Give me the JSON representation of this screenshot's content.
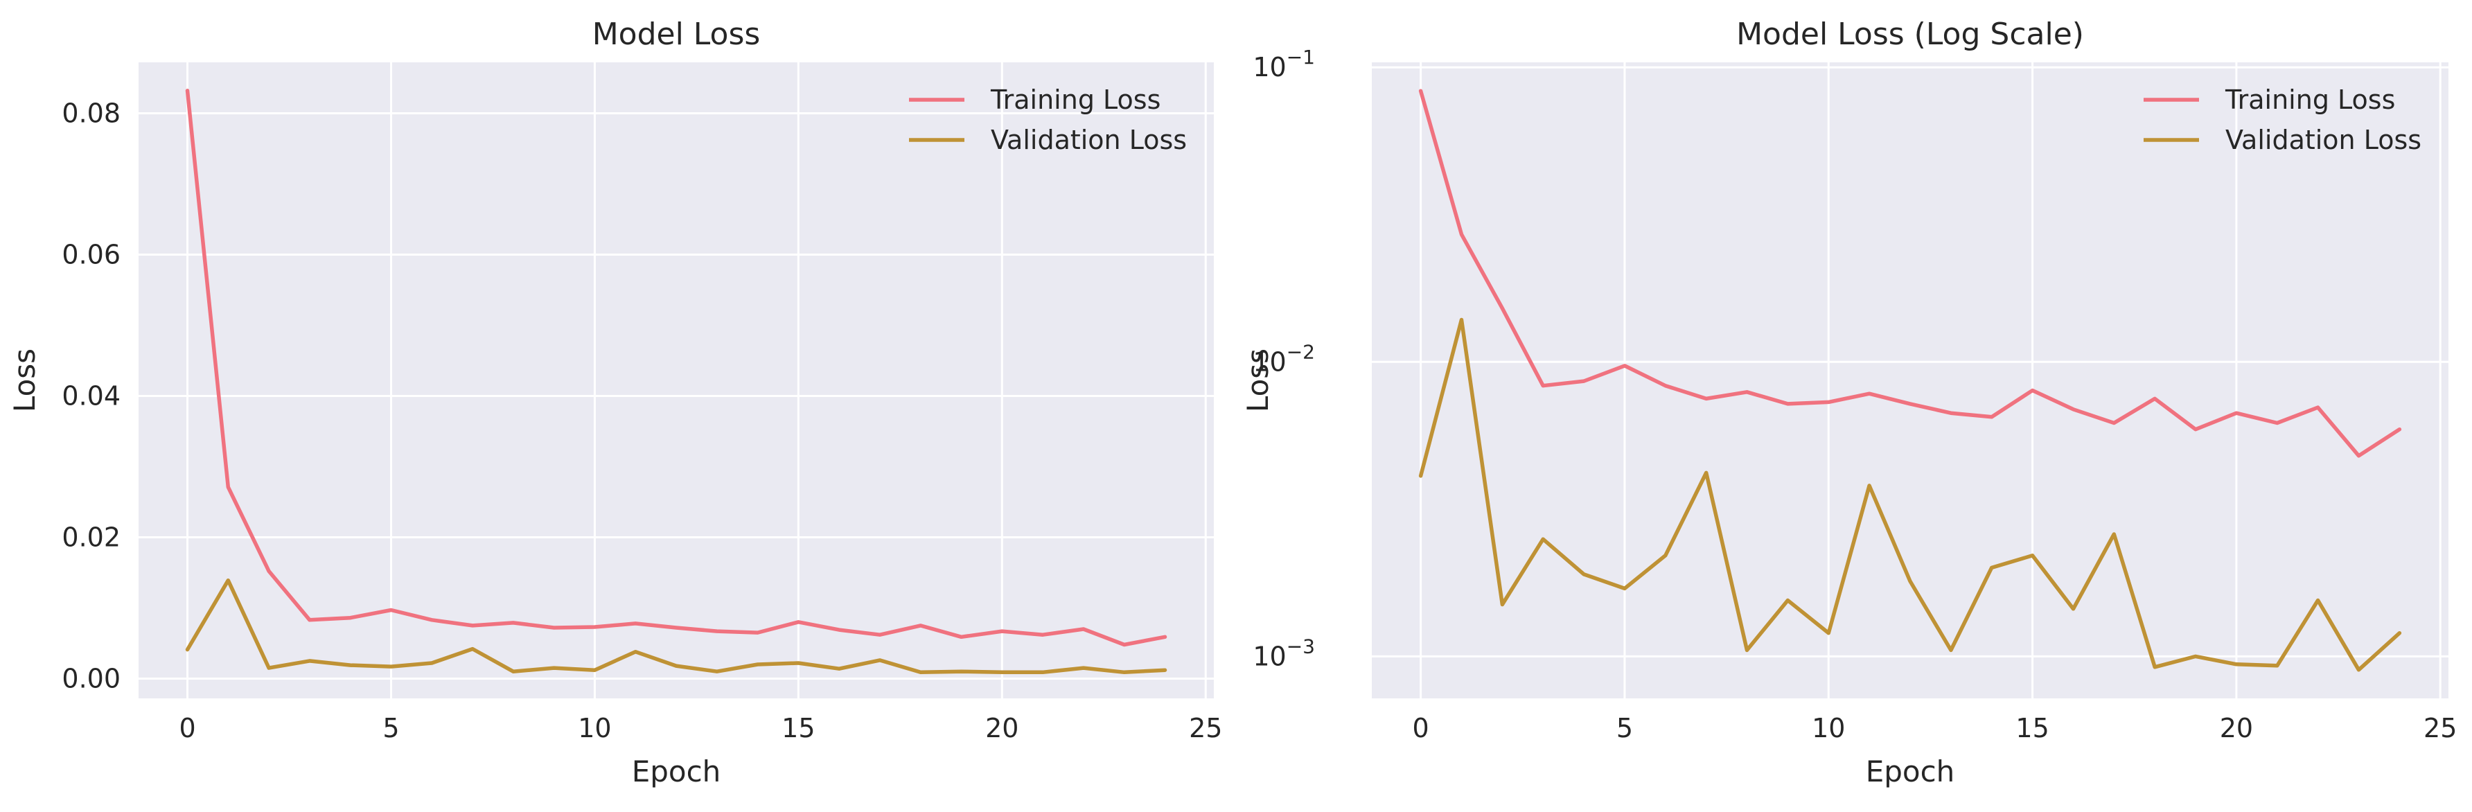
{
  "style": {
    "plot_background": "#EAEAF2",
    "grid_color": "#FFFFFF",
    "text_color": "#262626",
    "training_color": "#F0727F",
    "validation_color": "#BF9235"
  },
  "chart_data": [
    {
      "type": "line",
      "title": "Model Loss",
      "xlabel": "Epoch",
      "ylabel": "Loss",
      "yscale": "linear",
      "xlim": [
        -1.2,
        25.2
      ],
      "ylim": [
        -0.0028,
        0.0872
      ],
      "xticks": [
        0,
        5,
        10,
        15,
        20,
        25
      ],
      "yticks": [
        0.0,
        0.02,
        0.04,
        0.06,
        0.08
      ],
      "xtick_labels": [
        "0",
        "5",
        "10",
        "15",
        "20",
        "25"
      ],
      "ytick_labels": [
        "0.00",
        "0.02",
        "0.04",
        "0.06",
        "0.08"
      ],
      "grid": true,
      "legend_position": "top-right",
      "x": [
        0,
        1,
        2,
        3,
        4,
        5,
        6,
        7,
        8,
        9,
        10,
        11,
        12,
        13,
        14,
        15,
        16,
        17,
        18,
        19,
        20,
        21,
        22,
        23,
        24
      ],
      "series": [
        {
          "name": "Training Loss",
          "color": "#F0727F",
          "values": [
            0.0832,
            0.0271,
            0.0152,
            0.0083,
            0.0086,
            0.0097,
            0.0083,
            0.0075,
            0.0079,
            0.0072,
            0.0073,
            0.0078,
            0.0072,
            0.0067,
            0.0065,
            0.008,
            0.0069,
            0.0062,
            0.0075,
            0.0059,
            0.0067,
            0.0062,
            0.007,
            0.0048,
            0.0059
          ]
        },
        {
          "name": "Validation Loss",
          "color": "#BF9235",
          "values": [
            0.0041,
            0.0139,
            0.0015,
            0.0025,
            0.0019,
            0.0017,
            0.0022,
            0.0042,
            0.001,
            0.0015,
            0.0012,
            0.0038,
            0.0018,
            0.001,
            0.002,
            0.0022,
            0.0014,
            0.0026,
            0.0009,
            0.001,
            0.0009,
            0.0009,
            0.0015,
            0.0009,
            0.0012
          ]
        }
      ]
    },
    {
      "type": "line",
      "title": "Model Loss (Log Scale)",
      "xlabel": "Epoch",
      "ylabel": "Loss",
      "yscale": "log",
      "xlim": [
        -1.2,
        25.2
      ],
      "ylim": [
        0.00072,
        0.104
      ],
      "xticks": [
        0,
        5,
        10,
        15,
        20,
        25
      ],
      "yticks": [
        0.001,
        0.01,
        0.1
      ],
      "xtick_labels": [
        "0",
        "5",
        "10",
        "15",
        "20",
        "25"
      ],
      "ytick_labels": [
        {
          "base": "10",
          "exp": "−3"
        },
        {
          "base": "10",
          "exp": "−2"
        },
        {
          "base": "10",
          "exp": "−1"
        }
      ],
      "grid": true,
      "legend_position": "top-right",
      "x": [
        0,
        1,
        2,
        3,
        4,
        5,
        6,
        7,
        8,
        9,
        10,
        11,
        12,
        13,
        14,
        15,
        16,
        17,
        18,
        19,
        20,
        21,
        22,
        23,
        24
      ],
      "series": [
        {
          "name": "Training Loss",
          "color": "#F0727F",
          "values": [
            0.0832,
            0.0271,
            0.0152,
            0.0083,
            0.0086,
            0.0097,
            0.0083,
            0.0075,
            0.0079,
            0.0072,
            0.0073,
            0.0078,
            0.0072,
            0.0067,
            0.0065,
            0.008,
            0.0069,
            0.0062,
            0.0075,
            0.0059,
            0.0067,
            0.0062,
            0.007,
            0.0048,
            0.0059
          ]
        },
        {
          "name": "Validation Loss",
          "color": "#BF9235",
          "values": [
            0.0041,
            0.0139,
            0.0015,
            0.0025,
            0.0019,
            0.0017,
            0.0022,
            0.0042,
            0.00105,
            0.00155,
            0.0012,
            0.0038,
            0.0018,
            0.00105,
            0.002,
            0.0022,
            0.00145,
            0.0026,
            0.00092,
            0.001,
            0.00094,
            0.00093,
            0.00155,
            0.0009,
            0.0012
          ]
        }
      ]
    }
  ]
}
